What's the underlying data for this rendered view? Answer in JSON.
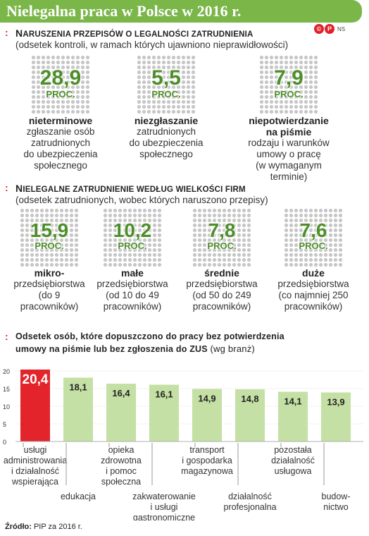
{
  "header": {
    "title": "Nielegalna praca w Polsce w 2016 r."
  },
  "copyright": {
    "c": "©",
    "p": "P",
    "ns": "NS"
  },
  "section1": {
    "marker": ":",
    "title_big1": "N",
    "title_small1": "ARUSZENIA PRZEPISÓW O LEGALNOŚCI ZATRUDNIENIA",
    "subtitle": "(odsetek kontroli, w ramach których ujawniono nieprawidłowości)",
    "unit": "PROC.",
    "items": [
      {
        "value": "28,9",
        "bold": "nieterminowe",
        "lines": [
          "zgłaszanie osób",
          "zatrudnionych",
          "do ubezpieczenia",
          "społecznego"
        ]
      },
      {
        "value": "5,5",
        "bold": "niezgłaszanie",
        "lines": [
          "zatrudnionych",
          "do ubezpieczenia",
          "społecznego"
        ]
      },
      {
        "value": "7,9",
        "bold": "niepotwierdzanie\nna piśmie",
        "lines": [
          "rodzaju i warunków",
          "umowy o pracę",
          "(w wymaganym terminie)"
        ]
      }
    ]
  },
  "section2": {
    "marker": ":",
    "title_big1": "N",
    "title_small1": "IELEGALNE ZATRUDNIENIE WEDŁUG WIELKOŚCI FIRM",
    "subtitle": "(odsetek zatrudnionych, wobec których naruszono przepisy)",
    "unit": "PROC.",
    "items": [
      {
        "value": "15,9",
        "bold": "mikro-",
        "lines": [
          "przedsiębiorstwa",
          "(do 9",
          "pracowników)"
        ]
      },
      {
        "value": "10,2",
        "bold": "małe",
        "lines": [
          "przedsiębiorstwa",
          "(od 10 do 49",
          "pracowników)"
        ]
      },
      {
        "value": "7,8",
        "bold": "średnie",
        "lines": [
          "przedsiębiorstwa",
          "(od 50 do 249",
          "pracowników)"
        ]
      },
      {
        "value": "7,6",
        "bold": "duże",
        "lines": [
          "przedsiębiorstwa",
          "(co najmniej 250",
          "pracowników)"
        ]
      }
    ]
  },
  "section3": {
    "marker": ":",
    "line1": "Odsetek osób, które dopuszczono do pracy bez potwierdzenia",
    "line2_main": "umowy na piśmie lub bez zgłoszenia do ZUS",
    "line2_sub": "(wg branż)"
  },
  "chart_data": {
    "type": "bar",
    "ylim": [
      0,
      20
    ],
    "yticks": [
      0,
      5,
      10,
      15,
      20
    ],
    "categories": [
      "usługi administrowania i działalność wspierająca",
      "edukacja",
      "opieka zdrowotna i pomoc społeczna",
      "zakwaterowanie i usługi gastronomiczne",
      "transport i gospodarka magazynowa",
      "działalność profesjonalna",
      "pozostała działalność usługowa",
      "budownictwo"
    ],
    "category_lines": [
      [
        "usługi",
        "administrowania",
        "i działalność",
        "wspierająca"
      ],
      [
        "edukacja"
      ],
      [
        "opieka",
        "zdrowotna",
        "i pomoc",
        "społeczna"
      ],
      [
        "zakwaterowanie",
        "i usługi",
        "gastronomiczne"
      ],
      [
        "transport",
        "i gospodarka",
        "magazynowa"
      ],
      [
        "działalność",
        "profesjonalna"
      ],
      [
        "pozostała",
        "działalność",
        "usługowa"
      ],
      [
        "budow-",
        "nictwo"
      ]
    ],
    "values": [
      20.4,
      18.1,
      16.4,
      16.1,
      14.9,
      14.8,
      14.1,
      13.9
    ],
    "value_labels": [
      "20,4",
      "18,1",
      "16,4",
      "16,1",
      "14,9",
      "14,8",
      "14,1",
      "13,9"
    ],
    "colors": {
      "highlight": "#e3242b",
      "bar": "#c5e0a5",
      "label": "#222222"
    }
  },
  "footer": {
    "source_label": "Źródło:",
    "source_text": "PIP za 2016 r."
  }
}
